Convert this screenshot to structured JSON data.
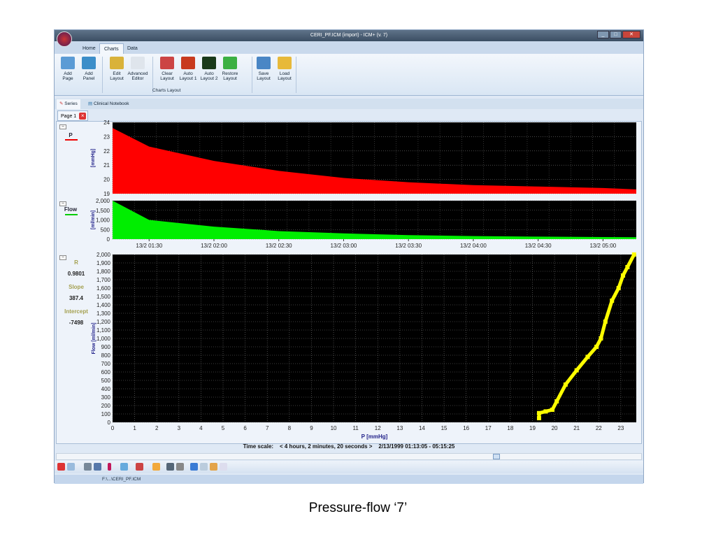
{
  "window": {
    "title": "CERI_PF.ICM (import) - ICM+ (v. 7)",
    "controls": [
      "_",
      "□",
      "✕"
    ]
  },
  "ribbon_tabs": [
    {
      "label": "Home"
    },
    {
      "label": "Charts",
      "active": true
    },
    {
      "label": "Data"
    }
  ],
  "ribbon_buttons": [
    {
      "label": "Add\nPage",
      "icon": "add-page-icon",
      "color": "#5b9bd5"
    },
    {
      "label": "Add\nPanel",
      "icon": "add-panel-icon",
      "color": "#3c8ec9"
    },
    {
      "label": "Edit\nLayout",
      "icon": "edit-layout-icon",
      "color": "#d9b23a"
    },
    {
      "label": "Advanced\nEditor",
      "icon": "advanced-editor-icon",
      "color": "#dfe5ec"
    },
    {
      "label": "Clear\nLayout",
      "icon": "clear-layout-icon",
      "color": "#c44"
    },
    {
      "label": "Auto\nLayout 1",
      "icon": "auto-layout-1-icon",
      "color": "#c83a1e"
    },
    {
      "label": "Auto\nLayout 2",
      "icon": "auto-layout-2-icon",
      "color": "#1a3a1a"
    },
    {
      "label": "Restore\nLayout",
      "icon": "restore-layout-icon",
      "color": "#3cb043"
    },
    {
      "label": "Save\nLayout",
      "icon": "save-layout-icon",
      "color": "#4a86c5"
    },
    {
      "label": "Load\nLayout",
      "icon": "load-layout-icon",
      "color": "#e7b93a"
    }
  ],
  "ribbon_group": "Charts Layout",
  "series_tabs": [
    {
      "label": "Series",
      "icon": "series-icon"
    },
    {
      "label": "Clinical Notebook",
      "icon": "notebook-icon"
    }
  ],
  "page_tab": "Page 1",
  "panels": {
    "p_label": "P",
    "flow_label": "Flow",
    "p_color": "#ff0000",
    "flow_color": "#00ee00",
    "scatter_color": "#ffff00"
  },
  "stats": {
    "r_label": "R",
    "r_value": "0.9801",
    "slope_label": "Slope",
    "slope_value": "387.4",
    "intercept_label": "Intercept",
    "intercept_value": "-7498"
  },
  "time_scale": {
    "label": "Time scale:",
    "duration": "< 4 hours, 2 minutes, 20 seconds >",
    "range": "2/13/1999 01:13:05 - 05:15:25"
  },
  "status_bar": {
    "path": "F:\\...\\CERI_PF.ICM"
  },
  "caption": "Pressure-flow ‘7’",
  "chart_data": [
    {
      "type": "area",
      "ylabel": "[mmHg]",
      "ylim": [
        19,
        24
      ],
      "yticks": [
        19,
        20,
        21,
        22,
        23,
        24
      ],
      "grid": true,
      "x_minutes_from": "01:13:05",
      "x": [
        "01:13",
        "01:30",
        "02:00",
        "02:30",
        "03:00",
        "03:30",
        "04:00",
        "04:30",
        "05:00",
        "05:15"
      ],
      "y": [
        23.6,
        22.3,
        21.3,
        20.6,
        20.1,
        19.8,
        19.6,
        19.5,
        19.4,
        19.3
      ]
    },
    {
      "type": "area",
      "ylabel": "[ml/min]",
      "ylim": [
        0,
        2000
      ],
      "yticks": [
        "0",
        "500",
        "1,000",
        "1,500",
        "2,000"
      ],
      "grid": true,
      "x": [
        "01:13",
        "01:30",
        "02:00",
        "02:30",
        "03:00",
        "03:30",
        "04:00",
        "04:30",
        "05:00",
        "05:15"
      ],
      "y": [
        2000,
        1000,
        650,
        420,
        300,
        210,
        160,
        130,
        110,
        100
      ],
      "xtick_labels": [
        "13/2 01:30",
        "13/2 02:00",
        "13/2 02:30",
        "13/2 03:00",
        "13/2 03:30",
        "13/2 04:00",
        "13/2 04:30",
        "13/2 05:00"
      ]
    },
    {
      "type": "line",
      "xlabel": "P [mmHg]",
      "ylabel": "Flow [ml/min]",
      "xlim": [
        0,
        23.7
      ],
      "ylim": [
        0,
        2000
      ],
      "grid": true,
      "xticks": [
        0,
        1,
        2,
        3,
        4,
        5,
        6,
        7,
        8,
        9,
        10,
        11,
        12,
        13,
        14,
        15,
        16,
        17,
        18,
        19,
        20,
        21,
        22,
        23
      ],
      "yticks": [
        "0",
        "100",
        "200",
        "300",
        "400",
        "500",
        "600",
        "700",
        "800",
        "900",
        "1,000",
        "1,100",
        "1,200",
        "1,300",
        "1,400",
        "1,500",
        "1,600",
        "1,700",
        "1,800",
        "1,900",
        "2,000"
      ],
      "x": [
        19.3,
        19.3,
        19.6,
        19.9,
        20.1,
        20.5,
        21.0,
        21.5,
        21.9,
        22.1,
        22.3,
        22.6,
        22.9,
        23.1,
        23.3,
        23.6
      ],
      "y": [
        50,
        110,
        130,
        150,
        250,
        450,
        620,
        780,
        900,
        1000,
        1200,
        1450,
        1600,
        1750,
        1850,
        2000
      ]
    }
  ]
}
